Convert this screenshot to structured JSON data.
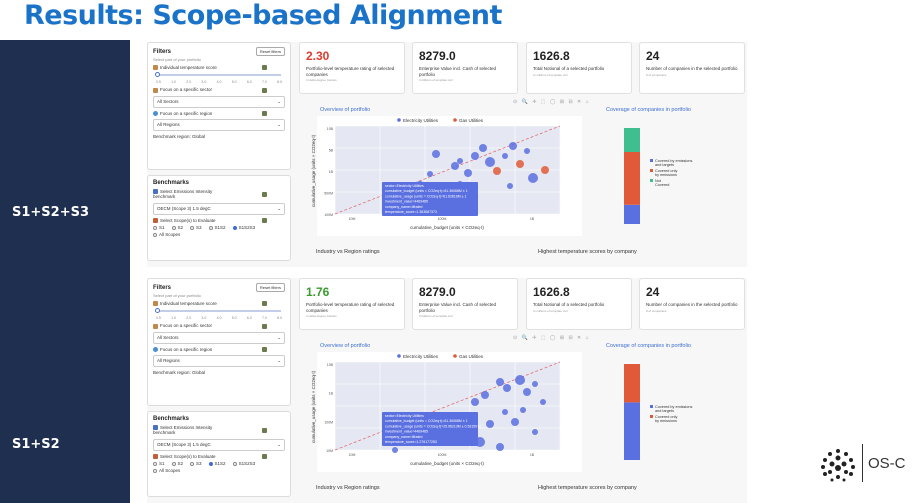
{
  "slide": {
    "title": "Results: Scope-based Alignment",
    "logo_text": "OS-C"
  },
  "panels": [
    {
      "row_label": "S1+S2+S3",
      "filters": {
        "title": "Filters",
        "reset_label": "Reset filters",
        "subtitle": "Select part of your portfolio",
        "temp_label": "Individual temperature score",
        "slider_ticks": [
          "0.5",
          "1.0",
          "2.0",
          "3.0",
          "4.0",
          "5.0",
          "6.0",
          "7.0",
          "8.0"
        ],
        "sector_label": "Focus on a specific sector",
        "sector_value": "All Sectors",
        "region_label": "Focus on a specific region",
        "region_value": "All Regions",
        "benchmark_region": "Benchmark region: Global"
      },
      "benchmarks": {
        "title": "Benchmarks",
        "ei_label": "Select Emissions Intensity benchmark",
        "ei_value": "OECM (Scope 3) 1.5 degC",
        "scope_label": "Select Scope(s) to Evaluate",
        "scope_options": [
          "S1",
          "S2",
          "S3",
          "S1S2",
          "S1S2S3",
          "All Scopes"
        ],
        "selected_scope": "S1S2S3"
      },
      "metrics": [
        {
          "value": "2.30",
          "label": "Portfolio-level temperature rating of selected companies",
          "unit": "In delta degree Celsius",
          "color": "#e03a2f"
        },
        {
          "value": "8279.0",
          "label": "Enterprise Value incl. Cash of selected portfolio",
          "unit": "In billions of template curr",
          "color": "#222222"
        },
        {
          "value": "1626.8",
          "label": "Total Notional of a selected portfolio",
          "unit": "In millions of template curr",
          "color": "#222222"
        },
        {
          "value": "24",
          "label": "Number of companies in the selected portfolio",
          "unit": "# of companies",
          "color": "#222222"
        }
      ],
      "overview": {
        "title": "Overview of portfolio",
        "legend": [
          "Electricity Utilities",
          "Gas Utilities"
        ],
        "xlabel": "cumulative_budget (units × CO2eq·t)",
        "ylabel": "cumulative_usage (units × CO2eq·t)",
        "y_ticks": [
          "10B",
          "5B",
          "1B",
          "500M",
          "100M"
        ],
        "x_ticks": [
          "10M",
          "100M",
          "1B"
        ],
        "tooltip": [
          "sector=Electricity Utilities",
          "cumulative_budget (units = CO2eq·t)=61.36068M ± 1",
          "cumulative_usage (units = CO2eq·t)=61.62816M ± 1",
          "investment_value=4469485",
          "company_name=lifrated",
          "temperature_score=1.363687373"
        ]
      },
      "coverage": {
        "title": "Coverage of companies in portfolio",
        "legend": [
          "Covered by emissions and targets",
          "Covered only by emissions",
          "Not Covered"
        ],
        "colors": [
          "#5a6fe0",
          "#e05a3a",
          "#3fbf8f"
        ],
        "fractions": [
          0.2,
          0.55,
          0.25
        ]
      },
      "bottom": {
        "left_title": "Industry vs Region ratings",
        "right_title": "Highest temperature scores by company"
      }
    },
    {
      "row_label": "S1+S2",
      "filters": {
        "title": "Filters",
        "reset_label": "Reset filters",
        "subtitle": "Select part of your portfolio",
        "temp_label": "Individual temperature score",
        "slider_ticks": [
          "0.5",
          "1.0",
          "2.0",
          "3.0",
          "4.0",
          "5.0",
          "6.0",
          "7.0",
          "8.0"
        ],
        "sector_label": "Focus on a specific sector",
        "sector_value": "All Sectors",
        "region_label": "Focus on a specific region",
        "region_value": "All Regions",
        "benchmark_region": "Benchmark region: Global"
      },
      "benchmarks": {
        "title": "Benchmarks",
        "ei_label": "Select Emissions Intensity benchmark",
        "ei_value": "OECM (Scope 3) 1.5 degC",
        "scope_label": "Select Scope(s) to Evaluate",
        "scope_options": [
          "S1",
          "S2",
          "S3",
          "S1S2",
          "S1S2S3",
          "All Scopes"
        ],
        "selected_scope": "S1S2"
      },
      "metrics": [
        {
          "value": "1.76",
          "label": "Portfolio-level temperature rating of selected companies",
          "unit": "In delta degree Celsius",
          "color": "#3a9a2f"
        },
        {
          "value": "8279.0",
          "label": "Enterprise Value incl. Cash of selected portfolio",
          "unit": "In billions of template curr",
          "color": "#222222"
        },
        {
          "value": "1626.8",
          "label": "Total Notional of a selected portfolio",
          "unit": "In millions of template curr",
          "color": "#222222"
        },
        {
          "value": "24",
          "label": "Number of companies in the selected portfolio",
          "unit": "# of companies",
          "color": "#222222"
        }
      ],
      "overview": {
        "title": "Overview of portfolio",
        "legend": [
          "Electricity Utilities",
          "Gas Utilities"
        ],
        "xlabel": "cumulative_budget (units × CO2eq·t)",
        "ylabel": "cumulative_usage (units × CO2eq·t)",
        "y_ticks": [
          "10B",
          "1B",
          "100M",
          "10M"
        ],
        "x_ticks": [
          "10M",
          "100M",
          "1B"
        ],
        "tooltip": [
          "sector=Electricity Utilities",
          "cumulative_budget (units = CO2eq·t)=61.36068M ± 1",
          "cumulative_usage (units = CO2eq·t)=25.96213M ± 0.5315073",
          "investment_value=4469485",
          "company_name=lifrated",
          "temperature_score=1.276177283"
        ]
      },
      "coverage": {
        "title": "Coverage of companies in portfolio",
        "legend": [
          "Covered by emissions and targets",
          "Covered only by emissions"
        ],
        "colors": [
          "#5a6fe0",
          "#e05a3a"
        ],
        "fractions": [
          0.6,
          0.4
        ]
      },
      "bottom": {
        "left_title": "Industry vs Region ratings",
        "right_title": "Highest temperature scores by company"
      }
    }
  ]
}
